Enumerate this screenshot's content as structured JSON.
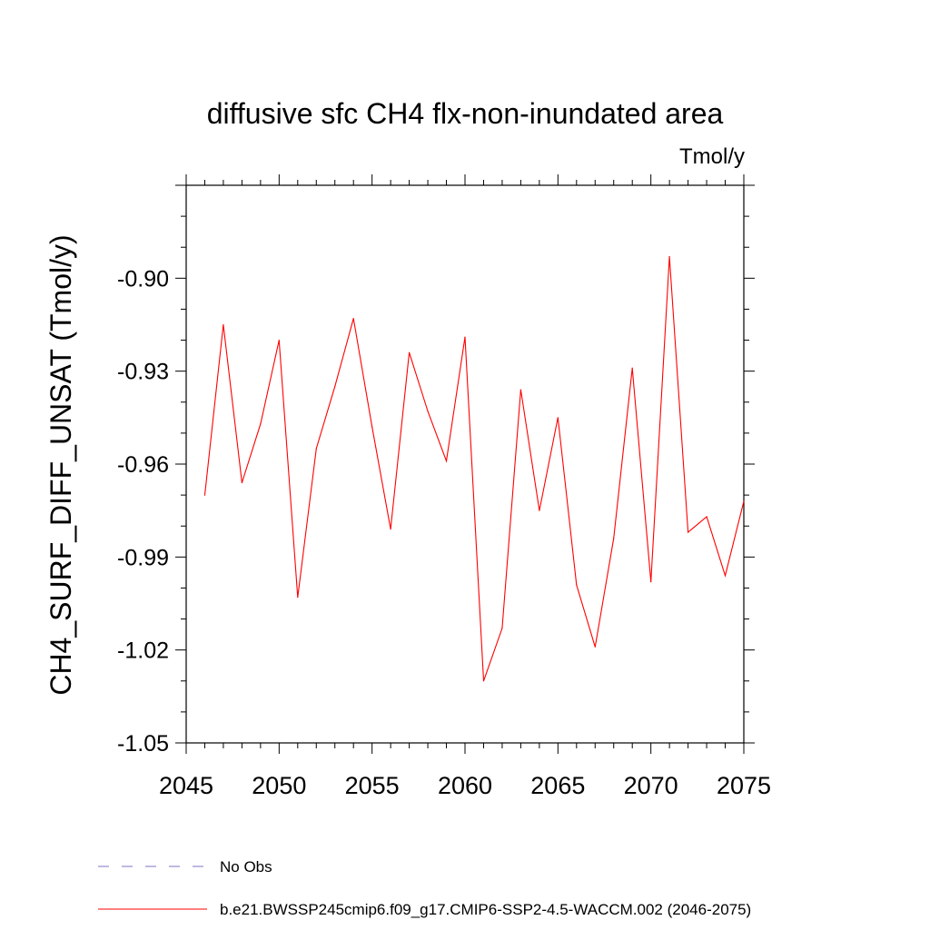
{
  "chart_data": {
    "type": "line",
    "title": "diffusive sfc CH4 flx-non-inundated area",
    "units": "Tmol/y",
    "ylabel": "CH4_SURF_DIFF_UNSAT  (Tmol/y)",
    "xlabel": "",
    "xlim": [
      2045,
      2075
    ],
    "ylim": [
      -1.05,
      -0.87
    ],
    "xticks": [
      2045,
      2050,
      2055,
      2060,
      2065,
      2070,
      2075
    ],
    "yticks": [
      -1.05,
      -1.02,
      -0.99,
      -0.96,
      -0.93,
      -0.9
    ],
    "ytick_labels": [
      "-1.05",
      "-1.02",
      "-0.99",
      "-0.96",
      "-0.93",
      "-0.90"
    ],
    "grid": false,
    "legend_position": "bottom",
    "series": [
      {
        "name": "b.e21.BWSSP245cmip6.f09_g17.CMIP6-SSP2-4.5-WACCM.002 (2046-2075)",
        "color": "#ff0000",
        "style": "solid",
        "x": [
          2046,
          2047,
          2048,
          2049,
          2050,
          2051,
          2052,
          2053,
          2054,
          2055,
          2056,
          2057,
          2058,
          2059,
          2060,
          2061,
          2062,
          2063,
          2064,
          2065,
          2066,
          2067,
          2068,
          2069,
          2070,
          2071,
          2072,
          2073,
          2074,
          2075
        ],
        "values": [
          -0.97,
          -0.915,
          -0.966,
          -0.947,
          -0.92,
          -1.003,
          -0.955,
          -0.935,
          -0.913,
          -0.948,
          -0.981,
          -0.924,
          -0.943,
          -0.959,
          -0.919,
          -1.03,
          -1.013,
          -0.936,
          -0.975,
          -0.945,
          -0.999,
          -1.019,
          -0.984,
          -0.929,
          -0.998,
          -0.893,
          -0.982,
          -0.977,
          -0.996,
          -0.972
        ]
      }
    ],
    "legend": [
      {
        "label": "No Obs",
        "color": "#7b74c0",
        "style": "dashed"
      },
      {
        "label": "b.e21.BWSSP245cmip6.f09_g17.CMIP6-SSP2-4.5-WACCM.002 (2046-2075)",
        "color": "#ff0000",
        "style": "solid"
      }
    ]
  }
}
